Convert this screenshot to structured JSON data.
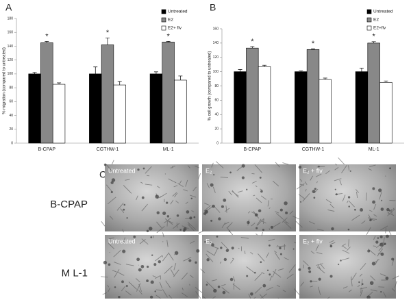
{
  "chart_data": [
    {
      "type": "bar",
      "panel": "A",
      "y_label": "% migration (compared to untreated)",
      "categories": [
        "B-CPAP",
        "CGTHW-1",
        "ML-1"
      ],
      "series": [
        {
          "name": "Untreated",
          "color": "#000000",
          "values": [
            100,
            100,
            100
          ],
          "errors": [
            2,
            10,
            3
          ]
        },
        {
          "name": "E2",
          "color": "#888888",
          "values": [
            145,
            142,
            146
          ],
          "errors": [
            2,
            10,
            1
          ],
          "annotations": [
            "*",
            "*",
            "*"
          ]
        },
        {
          "name": "E2+ flv",
          "color": "#ffffff",
          "values": [
            85,
            84,
            91
          ],
          "errors": [
            2,
            5,
            6
          ]
        }
      ],
      "ylim": [
        0,
        180
      ],
      "yticks": [
        0,
        20,
        40,
        60,
        80,
        100,
        120,
        140,
        160,
        180
      ],
      "legend": "top-right"
    },
    {
      "type": "bar",
      "panel": "B",
      "y_label": "% cell growth (compared to untreated)",
      "categories": [
        "B-CPAP",
        "CGTHW-1",
        "ML-1"
      ],
      "series": [
        {
          "name": "Untreated",
          "color": "#000000",
          "values": [
            100,
            100,
            100
          ],
          "errors": [
            3,
            1,
            5
          ]
        },
        {
          "name": "E2",
          "color": "#888888",
          "values": [
            133,
            131,
            140
          ],
          "errors": [
            2,
            1,
            2
          ],
          "annotations": [
            "*",
            "*",
            "*"
          ]
        },
        {
          "name": "E2+flv",
          "color": "#ffffff",
          "values": [
            107,
            89,
            85
          ],
          "errors": [
            2,
            2,
            2
          ]
        }
      ],
      "ylim": [
        0,
        160
      ],
      "yticks": [
        0,
        20,
        40,
        60,
        80,
        100,
        120,
        140,
        160
      ],
      "legend": "top-right"
    }
  ],
  "panel_c": {
    "panel": "C",
    "rows": [
      "B-CPAP",
      "M L-1"
    ],
    "columns": [
      "Untreated",
      "E₂",
      "E₂ + flv"
    ]
  }
}
